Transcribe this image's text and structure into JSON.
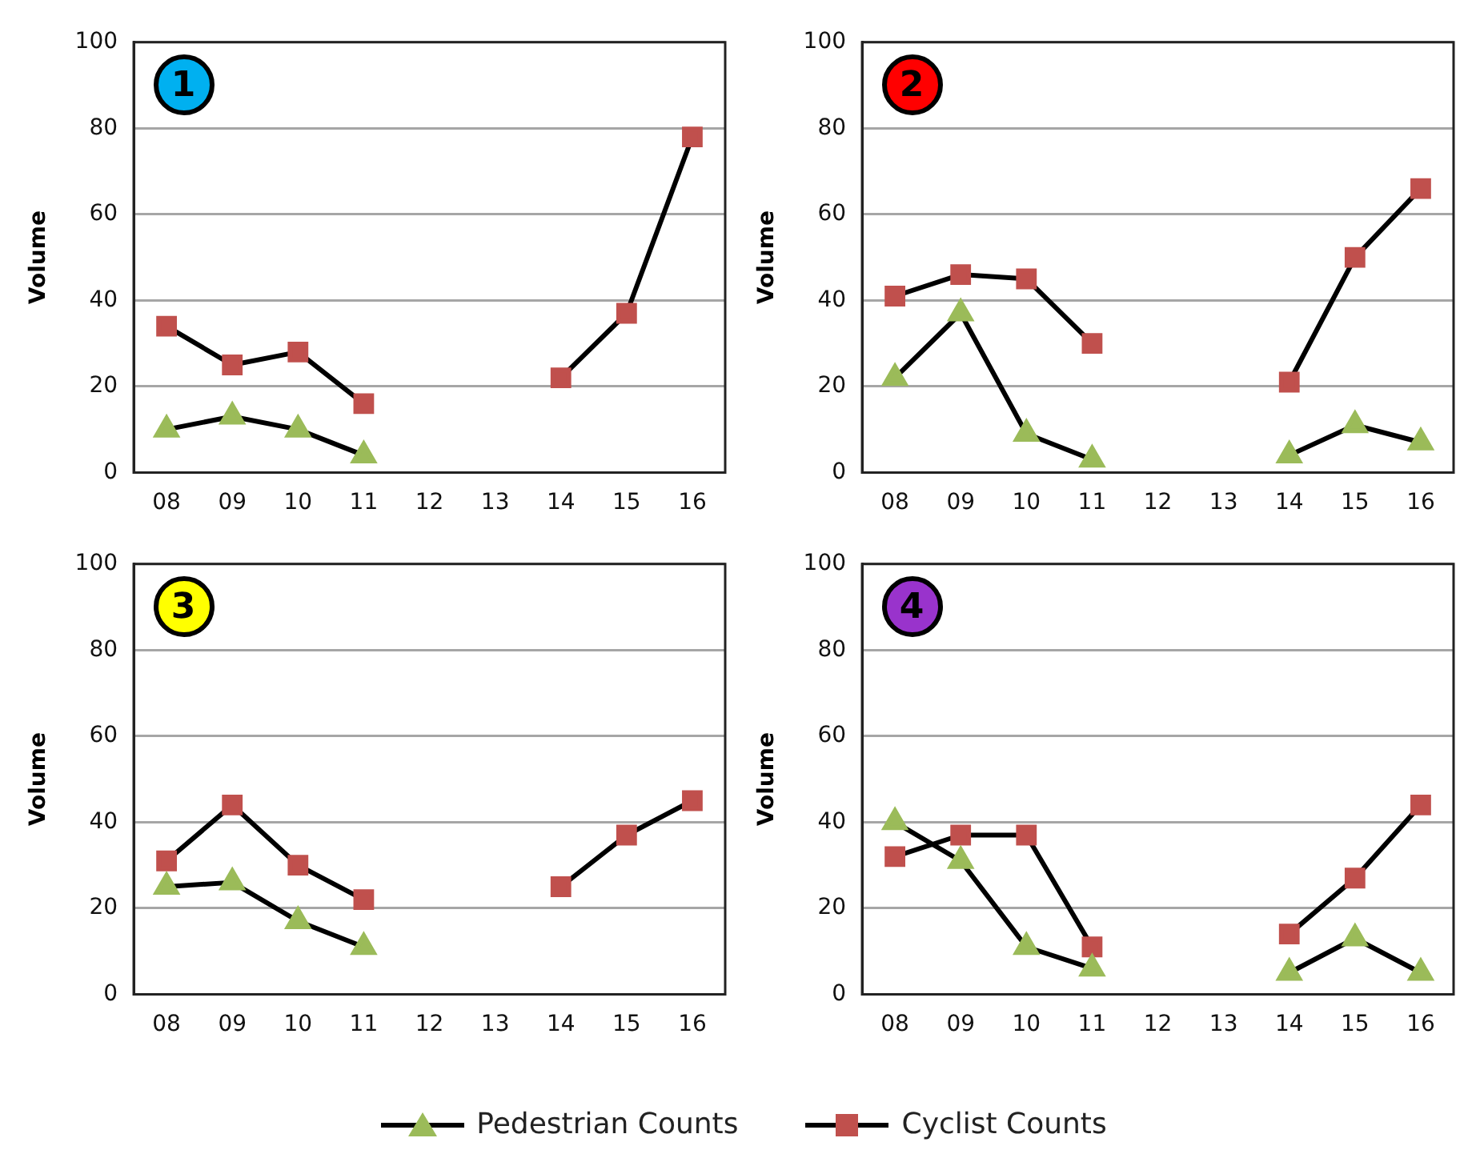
{
  "chart_data": [
    {
      "type": "line",
      "annotations": [
        "1"
      ],
      "ylabel": "Volume",
      "categories": [
        "08",
        "09",
        "10",
        "11",
        "12",
        "13",
        "14",
        "15",
        "16"
      ],
      "ylim": [
        0,
        100
      ],
      "yticks": [
        0,
        20,
        40,
        60,
        80,
        100
      ],
      "grid": "y",
      "line_style": "solid",
      "series": [
        {
          "color": "#9bbb59",
          "marker": "triangle",
          "values": [
            10,
            13,
            10,
            4,
            null,
            null,
            null,
            null,
            null
          ]
        },
        {
          "color": "#c0504d",
          "marker": "square",
          "values": [
            34,
            25,
            28,
            16,
            null,
            null,
            22,
            37,
            78
          ]
        }
      ]
    },
    {
      "type": "line",
      "annotations": [
        "2"
      ],
      "ylabel": "Volume",
      "categories": [
        "08",
        "09",
        "10",
        "11",
        "12",
        "13",
        "14",
        "15",
        "16"
      ],
      "ylim": [
        0,
        100
      ],
      "yticks": [
        0,
        20,
        40,
        60,
        80,
        100
      ],
      "grid": "y",
      "line_style": "solid",
      "series": [
        {
          "color": "#9bbb59",
          "marker": "triangle",
          "values": [
            22,
            37,
            9,
            3,
            null,
            null,
            4,
            11,
            7
          ]
        },
        {
          "color": "#c0504d",
          "marker": "square",
          "values": [
            41,
            46,
            45,
            30,
            null,
            null,
            21,
            50,
            66
          ]
        }
      ]
    },
    {
      "type": "line",
      "annotations": [
        "3"
      ],
      "ylabel": "Volume",
      "categories": [
        "08",
        "09",
        "10",
        "11",
        "12",
        "13",
        "14",
        "15",
        "16"
      ],
      "ylim": [
        0,
        100
      ],
      "yticks": [
        0,
        20,
        40,
        60,
        80,
        100
      ],
      "grid": "y",
      "line_style": "solid",
      "series": [
        {
          "color": "#9bbb59",
          "marker": "triangle",
          "values": [
            25,
            26,
            17,
            11,
            null,
            null,
            null,
            null,
            null
          ]
        },
        {
          "color": "#c0504d",
          "marker": "square",
          "values": [
            31,
            44,
            30,
            22,
            null,
            null,
            25,
            37,
            45
          ]
        }
      ]
    },
    {
      "type": "line",
      "annotations": [
        "4"
      ],
      "ylabel": "Volume",
      "categories": [
        "08",
        "09",
        "10",
        "11",
        "12",
        "13",
        "14",
        "15",
        "16"
      ],
      "ylim": [
        0,
        100
      ],
      "yticks": [
        0,
        20,
        40,
        60,
        80,
        100
      ],
      "grid": "y",
      "legend": "bottom",
      "line_style": "solid",
      "series": [
        {
          "name": "Pedestrian Counts",
          "color": "#9bbb59",
          "marker": "triangle",
          "values": [
            40,
            31,
            11,
            6,
            null,
            null,
            5,
            13,
            5
          ]
        },
        {
          "name": "Cyclist Counts",
          "color": "#c0504d",
          "marker": "square",
          "values": [
            32,
            37,
            37,
            11,
            null,
            null,
            14,
            27,
            44
          ]
        }
      ]
    }
  ]
}
